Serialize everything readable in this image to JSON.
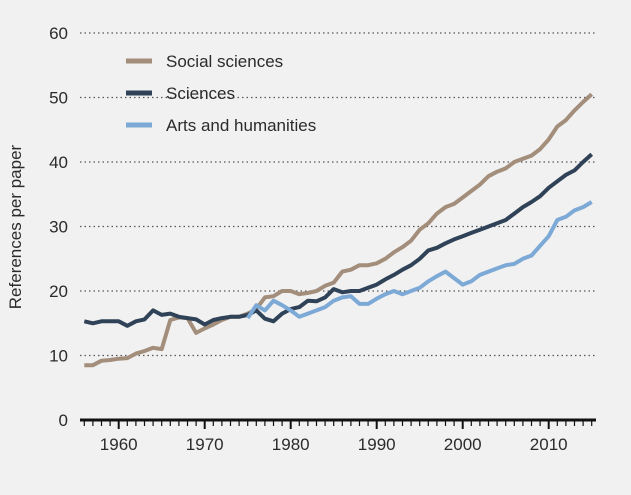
{
  "chart_data": {
    "type": "line",
    "title": "",
    "xlabel": "",
    "ylabel": "References per paper",
    "xlim": [
      1955.5,
      2015.5
    ],
    "ylim": [
      0,
      60
    ],
    "x_ticks": [
      1960,
      1970,
      1980,
      1990,
      2000,
      2010
    ],
    "y_ticks": [
      0,
      10,
      20,
      30,
      40,
      50,
      60
    ],
    "grid": "horizontal dotted",
    "legend_position": "top-left",
    "x": [
      1956,
      1957,
      1958,
      1959,
      1960,
      1961,
      1962,
      1963,
      1964,
      1965,
      1966,
      1967,
      1968,
      1969,
      1970,
      1971,
      1972,
      1973,
      1974,
      1975,
      1976,
      1977,
      1978,
      1979,
      1980,
      1981,
      1982,
      1983,
      1984,
      1985,
      1986,
      1987,
      1988,
      1989,
      1990,
      1991,
      1992,
      1993,
      1994,
      1995,
      1996,
      1997,
      1998,
      1999,
      2000,
      2001,
      2002,
      2003,
      2004,
      2005,
      2006,
      2007,
      2008,
      2009,
      2010,
      2011,
      2012,
      2013,
      2014,
      2015
    ],
    "series": [
      {
        "name": "Social sciences",
        "color": "#a38d7b",
        "values": [
          8.5,
          8.5,
          9.2,
          9.3,
          9.5,
          9.6,
          10.3,
          10.7,
          11.2,
          11.0,
          15.5,
          15.9,
          15.8,
          13.5,
          14.2,
          14.8,
          15.5,
          16.0,
          16.0,
          16.5,
          17.2,
          19.0,
          19.2,
          20.0,
          20.0,
          19.5,
          19.7,
          20.0,
          20.8,
          21.3,
          23.0,
          23.3,
          24.0,
          24.0,
          24.3,
          25.0,
          26.0,
          26.8,
          27.8,
          29.5,
          30.5,
          32.0,
          33.0,
          33.5,
          34.5,
          35.5,
          36.5,
          37.8,
          38.5,
          39.0,
          40.0,
          40.5,
          41.0,
          42.0,
          43.5,
          45.5,
          46.5,
          48.0,
          49.3,
          50.5
        ]
      },
      {
        "name": "Sciences",
        "color": "#2f4257",
        "values": [
          15.3,
          15.0,
          15.3,
          15.3,
          15.3,
          14.6,
          15.3,
          15.6,
          17.0,
          16.3,
          16.5,
          16.0,
          15.8,
          15.6,
          14.8,
          15.5,
          15.8,
          16.0,
          16.0,
          16.3,
          17.0,
          15.7,
          15.3,
          16.5,
          17.2,
          17.5,
          18.5,
          18.4,
          19.0,
          20.3,
          19.8,
          20.0,
          20.0,
          20.5,
          21.0,
          21.8,
          22.5,
          23.3,
          24.0,
          25.0,
          26.3,
          26.7,
          27.4,
          28.0,
          28.5,
          29.0,
          29.5,
          30.0,
          30.5,
          31.0,
          32.0,
          33.0,
          33.8,
          34.7,
          36.0,
          37.0,
          38.0,
          38.7,
          40.0,
          41.2
        ]
      },
      {
        "name": "Arts and humanities",
        "color": "#7da9d6",
        "values": [
          null,
          null,
          null,
          null,
          null,
          null,
          null,
          null,
          null,
          null,
          null,
          null,
          null,
          null,
          null,
          null,
          null,
          null,
          null,
          15.8,
          17.8,
          17.0,
          18.5,
          17.8,
          17.0,
          16.0,
          16.5,
          17.0,
          17.5,
          18.5,
          19.0,
          19.2,
          18.0,
          18.0,
          18.8,
          19.5,
          20.0,
          19.5,
          20.0,
          20.5,
          21.5,
          22.3,
          23.0,
          22.0,
          21.0,
          21.5,
          22.5,
          23.0,
          23.5,
          24.0,
          24.2,
          25.0,
          25.5,
          27.0,
          28.5,
          31.0,
          31.5,
          32.5,
          33.0,
          33.8
        ]
      }
    ]
  }
}
